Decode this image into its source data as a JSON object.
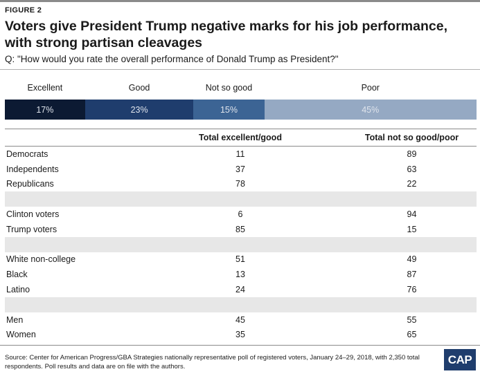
{
  "figure_label": "FIGURE 2",
  "title": "Voters give President Trump negative marks for his job performance, with strong partisan cleavages",
  "question": "Q: \"How would you rate the overall performance of Donald Trump as President?\"",
  "colors": {
    "excellent": "#0c1a33",
    "good": "#1f3d6d",
    "not_so_good": "#3c6494",
    "poor": "#95a9c3",
    "row_shade": "#e7e7e7"
  },
  "chart_data": [
    {
      "type": "bar",
      "stacked": true,
      "orientation": "horizontal",
      "categories": [
        "Excellent",
        "Good",
        "Not so good",
        "Poor"
      ],
      "values": [
        17,
        23,
        15,
        45
      ],
      "value_labels": [
        "17%",
        "23%",
        "15%",
        "45%"
      ]
    },
    {
      "type": "table",
      "columns": [
        "",
        "Total excellent/good",
        "Total not so good/poor"
      ],
      "rows": [
        {
          "label": "Democrats",
          "excellent_good": "11",
          "not_so_good_poor": "89"
        },
        {
          "label": "Independents",
          "excellent_good": "37",
          "not_so_good_poor": "63"
        },
        {
          "label": "Republicans",
          "excellent_good": "78",
          "not_so_good_poor": "22"
        },
        {
          "spacer": true
        },
        {
          "label": "Clinton voters",
          "excellent_good": "6",
          "not_so_good_poor": "94"
        },
        {
          "label": "Trump voters",
          "excellent_good": "85",
          "not_so_good_poor": "15"
        },
        {
          "spacer": true
        },
        {
          "label": "White non-college",
          "excellent_good": "51",
          "not_so_good_poor": "49"
        },
        {
          "label": "Black",
          "excellent_good": "13",
          "not_so_good_poor": "87"
        },
        {
          "label": "Latino",
          "excellent_good": "24",
          "not_so_good_poor": "76"
        },
        {
          "spacer": true
        },
        {
          "label": "Men",
          "excellent_good": "45",
          "not_so_good_poor": "55"
        },
        {
          "label": "Women",
          "excellent_good": "35",
          "not_so_good_poor": "65"
        }
      ]
    }
  ],
  "source": "Source: Center for American Progress/GBA Strategies nationally representative poll of registered voters, January 24–29, 2018, with 2,350 total respondents. Poll results and data are on file with the authors.",
  "logo_text": "CAP"
}
